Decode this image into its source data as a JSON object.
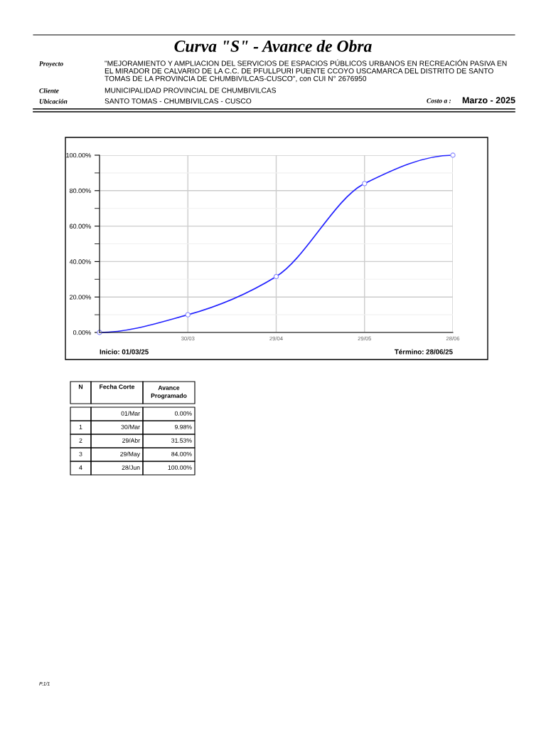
{
  "chart_data": {
    "type": "line",
    "title": "Curva \"S\" - Avance de Obra",
    "categories": [
      null,
      "30/03",
      "29/04",
      "29/05",
      "28/06"
    ],
    "series": [
      {
        "color": "#2222ff",
        "values": [
          0,
          9.98,
          31.53,
          84,
          100
        ]
      }
    ],
    "ylim": [
      0,
      100
    ],
    "yticks": [
      {
        "value": 0,
        "label": "0.00%"
      },
      {
        "value": 20,
        "label": "20.00%"
      },
      {
        "value": 40,
        "label": "40.00%"
      },
      {
        "value": 60,
        "label": "60.00%"
      },
      {
        "value": 80,
        "label": "80.00%"
      },
      {
        "value": 100,
        "label": "100.00%"
      }
    ],
    "grid": true,
    "marker": "circle",
    "line_style": "solid",
    "annotations": [
      "Proyecto",
      "\"MEJORAMIENTO Y AMPLIACION DEL SERVICIOS DE ESPACIOS PÚBLICOS URBANOS EN RECREACIÓN PASIVA EN\nEL MIRADOR DE CALVARIO DE LA C.C. DE PFULLPURI PUENTE CCOYO USCAMARCA DEL DISTRITO DE SANTO\nTOMAS DE LA PROVINCIA DE CHUMBIVILCAS-CUSCO\", con CUI N° 2676950",
      "Cliente",
      "MUNICIPALIDAD PROVINCIAL DE CHUMBIVILCAS",
      "Ubicación",
      "SANTO TOMAS - CHUMBIVILCAS - CUSCO",
      "Costo a :",
      "Marzo - 2025",
      "Inicio: 01/03/25",
      "Término: 28/06/25",
      "N",
      "Fecha Corte",
      "Avance\nProgramado",
      "1",
      "2",
      "3",
      "4",
      "01/Mar",
      "30/Mar",
      "29/Abr",
      "29/May",
      "28/Jun",
      "0.00%",
      "9.98%",
      "31.53%",
      "84.00%",
      "100.00%",
      "P.1/1"
    ]
  }
}
